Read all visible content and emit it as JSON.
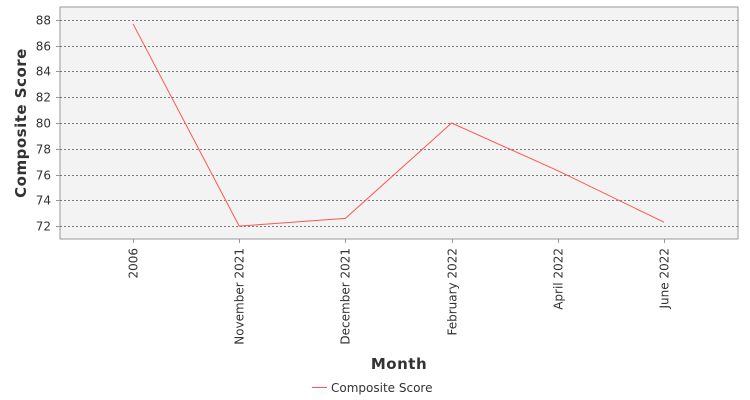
{
  "chart_data": {
    "type": "line",
    "title": "",
    "xlabel": "Month",
    "ylabel": "Composite Score",
    "categories": [
      "2006",
      "November 2021",
      "December 2021",
      "February 2022",
      "April 2022",
      "June 2022"
    ],
    "series": [
      {
        "name": "Composite Score",
        "values": [
          87.7,
          72.0,
          72.6,
          80.0,
          76.3,
          72.3
        ],
        "color": "#ff5555"
      }
    ],
    "ylim": [
      71,
      89
    ],
    "yticks": [
      72,
      74,
      76,
      78,
      80,
      82,
      84,
      86,
      88
    ],
    "grid": true,
    "legend_position": "bottom-center",
    "colors": {
      "plot_background": "#f3f3f3",
      "grid": "#555555",
      "axis": "#999999"
    }
  }
}
